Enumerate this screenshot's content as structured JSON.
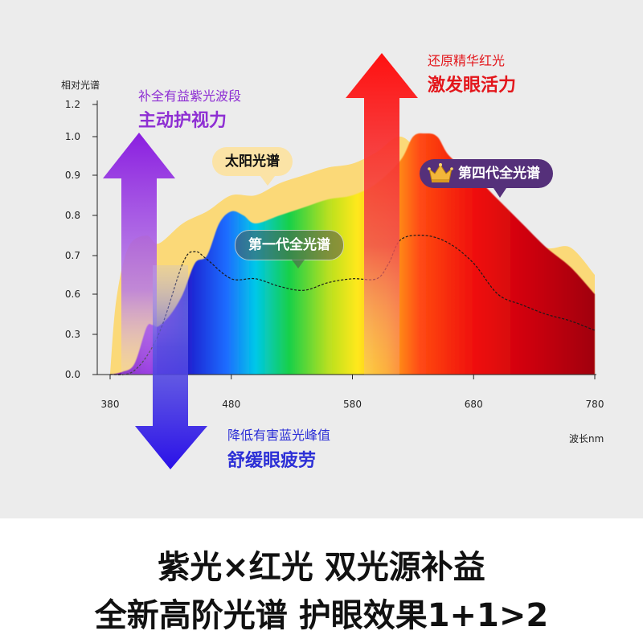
{
  "chart_data": {
    "type": "area",
    "ylabel": "相对光谱",
    "xlabel": "波长nm",
    "xlim": [
      380,
      780
    ],
    "ylim": [
      0,
      1.2
    ],
    "y_ticks": [
      "0.0",
      "0.3",
      "0.6",
      "0.7",
      "0.8",
      "0.9",
      "1.0",
      "1.2"
    ],
    "x_ticks": [
      "380",
      "480",
      "580",
      "680",
      "780"
    ],
    "series": [
      {
        "name": "太阳光谱",
        "x": [
          380,
          385,
          395,
          410,
          420,
          440,
          460,
          480,
          500,
          520,
          540,
          560,
          580,
          600,
          620,
          640,
          660,
          680,
          700,
          720,
          740,
          760,
          780
        ],
        "y": [
          0.0,
          0.55,
          0.72,
          0.75,
          0.73,
          0.78,
          0.81,
          0.85,
          0.85,
          0.88,
          0.9,
          0.92,
          0.93,
          0.96,
          1.0,
          0.94,
          0.88,
          0.82,
          0.8,
          0.77,
          0.72,
          0.72,
          0.65
        ]
      },
      {
        "name": "第四代全光谱",
        "x": [
          380,
          390,
          400,
          410,
          415,
          420,
          430,
          440,
          450,
          460,
          470,
          480,
          490,
          500,
          520,
          540,
          560,
          580,
          600,
          620,
          630,
          640,
          650,
          660,
          680,
          700,
          720,
          740,
          760,
          780
        ],
        "y": [
          0.0,
          0.02,
          0.08,
          0.35,
          0.37,
          0.36,
          0.45,
          0.6,
          0.68,
          0.7,
          0.78,
          0.81,
          0.8,
          0.78,
          0.8,
          0.82,
          0.84,
          0.85,
          0.88,
          0.94,
          1.0,
          1.02,
          1.0,
          0.95,
          0.9,
          0.84,
          0.78,
          0.72,
          0.67,
          0.6
        ]
      },
      {
        "name": "第一代全光谱",
        "x": [
          380,
          400,
          420,
          440,
          450,
          460,
          480,
          500,
          520,
          540,
          560,
          580,
          600,
          610,
          620,
          640,
          660,
          680,
          700,
          720,
          740,
          760,
          780
        ],
        "y": [
          0.0,
          0.03,
          0.3,
          0.68,
          0.71,
          0.69,
          0.64,
          0.64,
          0.62,
          0.61,
          0.63,
          0.64,
          0.64,
          0.68,
          0.74,
          0.75,
          0.73,
          0.68,
          0.6,
          0.52,
          0.45,
          0.4,
          0.33
        ]
      }
    ],
    "annotations": {
      "purple_small": "补全有益紫光波段",
      "purple_big": "主动护视力",
      "red_small": "还原精华红光",
      "red_big": "激发眼活力",
      "blue_small": "降低有害蓝光峰值",
      "blue_big": "舒缓眼疲劳",
      "bubble_sun": "太阳光谱",
      "bubble_gen1": "第一代全光谱",
      "bubble_gen4": "第四代全光谱"
    },
    "colors": {
      "sun": "#fbd978",
      "gen1_line": "#1a1a1a",
      "purple_arrow": "#8a2be2",
      "red_arrow": "#f01818",
      "blue_arrow": "#2a1ee0"
    }
  },
  "footer": {
    "line1": "紫光×红光 双光源补益",
    "line2": "全新高阶光谱 护眼效果1+1>2"
  }
}
